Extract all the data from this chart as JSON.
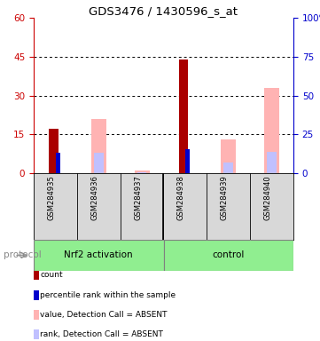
{
  "title": "GDS3476 / 1430596_s_at",
  "samples": [
    "GSM284935",
    "GSM284936",
    "GSM284937",
    "GSM284938",
    "GSM284939",
    "GSM284940"
  ],
  "count_values": [
    17,
    0,
    0,
    44,
    0,
    0
  ],
  "rank_values": [
    13,
    0,
    0,
    15.5,
    0,
    0
  ],
  "absent_value_values": [
    0,
    21,
    1,
    0,
    13,
    33
  ],
  "absent_rank_values": [
    0,
    13,
    0.5,
    0,
    7,
    14
  ],
  "left_ylim": [
    0,
    60
  ],
  "right_ylim": [
    0,
    100
  ],
  "left_yticks": [
    0,
    15,
    30,
    45,
    60
  ],
  "right_yticks": [
    0,
    25,
    50,
    75,
    100
  ],
  "right_yticklabels": [
    "0",
    "25",
    "50",
    "75",
    "100%"
  ],
  "left_tick_color": "#cc0000",
  "right_tick_color": "#0000cc",
  "color_count": "#aa0000",
  "color_rank": "#0000cc",
  "color_absent_value": "#ffb3b3",
  "color_absent_rank": "#c0c0ff",
  "bg_gray": "#d8d8d8",
  "green_light": "#90ee90",
  "group_split": 3,
  "nrf2_label": "Nrf2 activation",
  "ctrl_label": "control",
  "protocol_label": "protocol",
  "legend_labels": [
    "count",
    "percentile rank within the sample",
    "value, Detection Call = ABSENT",
    "rank, Detection Call = ABSENT"
  ],
  "legend_colors": [
    "#aa0000",
    "#0000cc",
    "#ffb3b3",
    "#c0c0ff"
  ]
}
